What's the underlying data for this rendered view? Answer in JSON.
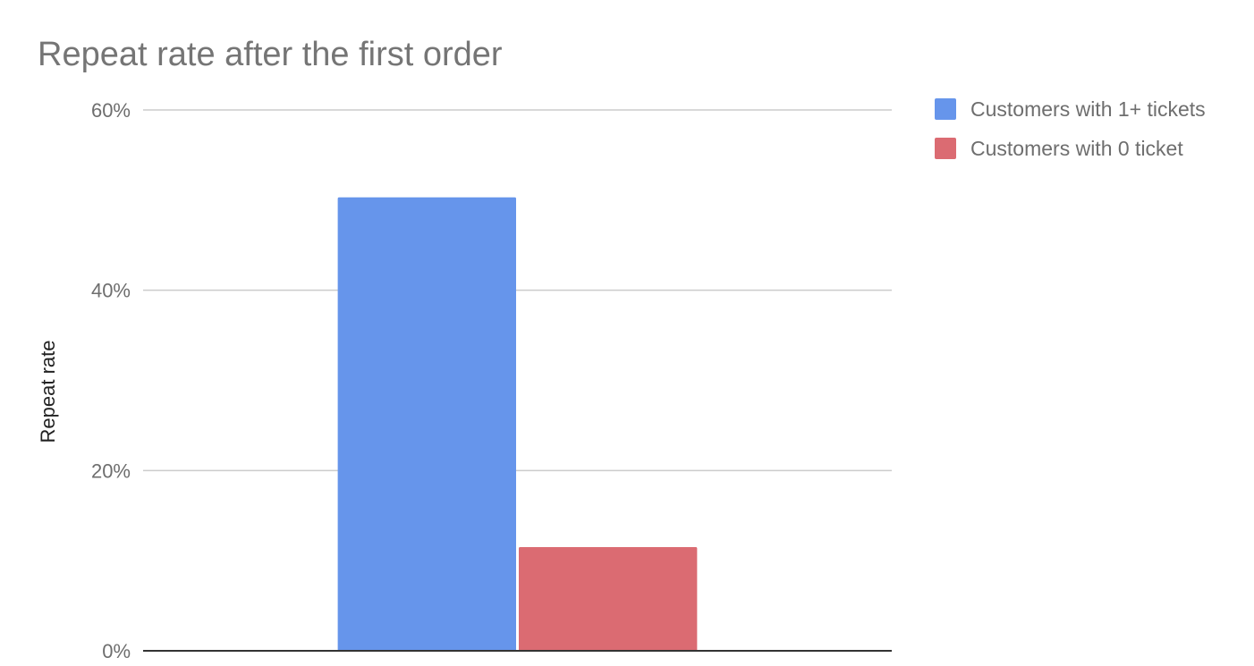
{
  "chart_data": {
    "type": "bar",
    "title": "Repeat rate after the first order",
    "xlabel": "",
    "ylabel": "Repeat rate",
    "categories": [
      ""
    ],
    "series": [
      {
        "name": "Customers with 1+ tickets",
        "values": [
          50.3
        ],
        "color": "#6695eb"
      },
      {
        "name": "Customers with 0 ticket",
        "values": [
          11.5
        ],
        "color": "#db6b72"
      }
    ],
    "ylim": [
      0,
      60
    ],
    "y_ticks": [
      0,
      20,
      40,
      60
    ],
    "y_tick_labels": [
      "0%",
      "20%",
      "40%",
      "60%"
    ],
    "grid": true,
    "legend_position": "right"
  }
}
